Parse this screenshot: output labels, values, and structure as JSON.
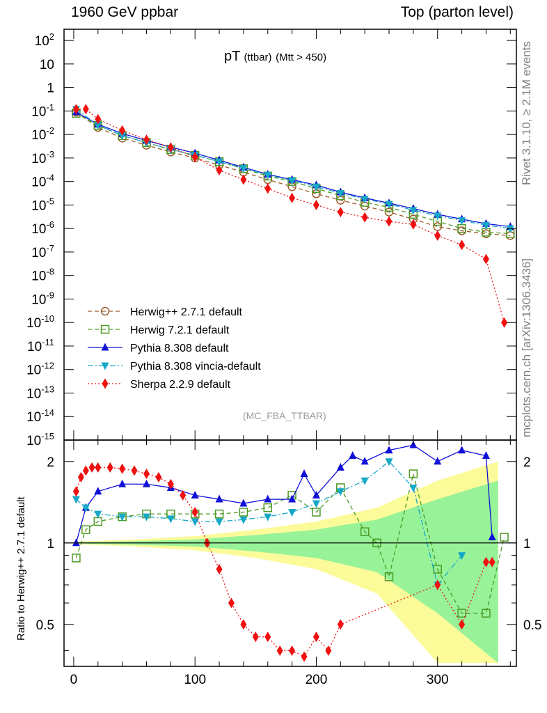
{
  "header": {
    "left": "1960 GeV ppbar",
    "right": "Top (parton level)"
  },
  "side": {
    "rivet": "Rivet 3.1.10, ≥ 2.1M events",
    "mcplots": "mcplots.cern.ch [arXiv:1306.3436]"
  },
  "chart_data": [
    {
      "type": "line",
      "title": "pT (ttbar) (Mtt > 450)",
      "title_main": "pT",
      "title_sub": "(ttbar)",
      "title_cut": "(Mtt > 450)",
      "watermark": "(MC_FBA_TTBAR)",
      "yscale": "log",
      "ylim": [
        1e-15,
        300
      ],
      "xlim": [
        -8,
        365
      ],
      "ytick_labels": [
        "10^2",
        "10",
        "1",
        "10^-1",
        "10^-2",
        "10^-3",
        "10^-4",
        "10^-5",
        "10^-6",
        "10^-7",
        "10^-8",
        "10^-9",
        "10^-10",
        "10^-11",
        "10^-12",
        "10^-13",
        "10^-14",
        "10^-15"
      ],
      "legend_position": "lower-left",
      "series": [
        {
          "name": "Herwig++ 2.7.1 default",
          "color": "#9c5b2a",
          "marker": "circle-open",
          "style": "dashed",
          "x": [
            2,
            20,
            40,
            60,
            80,
            100,
            120,
            140,
            160,
            180,
            200,
            220,
            240,
            260,
            280,
            300,
            320,
            340,
            360
          ],
          "y": [
            0.09,
            0.02,
            0.007,
            0.0035,
            0.0018,
            0.001,
            0.0005,
            0.00025,
            0.00012,
            6e-05,
            3e-05,
            1.6e-05,
            9e-06,
            5e-06,
            2.5e-06,
            1.2e-06,
            8e-07,
            6e-07,
            5e-07
          ]
        },
        {
          "name": "Herwig 7.2.1 default",
          "color": "#4d9a25",
          "marker": "square-open",
          "style": "dashed",
          "x": [
            2,
            20,
            40,
            60,
            80,
            100,
            120,
            140,
            160,
            180,
            200,
            220,
            240,
            260,
            280,
            300,
            320,
            340,
            360
          ],
          "y": [
            0.08,
            0.024,
            0.009,
            0.0045,
            0.0023,
            0.0013,
            0.0007,
            0.00035,
            0.00017,
            0.0001,
            5e-05,
            2.5e-05,
            1.3e-05,
            8e-06,
            4e-06,
            2e-06,
            1e-06,
            7e-07,
            6e-07
          ]
        },
        {
          "name": "Pythia 8.308 default",
          "color": "#1010d8",
          "marker": "triangle-up",
          "style": "solid",
          "x": [
            2,
            20,
            40,
            60,
            80,
            100,
            120,
            140,
            160,
            180,
            200,
            220,
            240,
            260,
            280,
            300,
            320,
            340,
            360
          ],
          "y": [
            0.09,
            0.027,
            0.011,
            0.0055,
            0.0029,
            0.0016,
            0.0008,
            0.0004,
            0.0002,
            0.00012,
            7e-05,
            3.5e-05,
            2e-05,
            1.2e-05,
            7e-06,
            4e-06,
            2.5e-06,
            1.6e-06,
            1.2e-06
          ]
        },
        {
          "name": "Pythia 8.308 vincia-default",
          "color": "#17a8c8",
          "marker": "triangle-down",
          "style": "dash-dot",
          "x": [
            2,
            20,
            40,
            60,
            80,
            100,
            120,
            140,
            160,
            180,
            200,
            220,
            240,
            260,
            280,
            300,
            320,
            340,
            360
          ],
          "y": [
            0.12,
            0.025,
            0.009,
            0.0045,
            0.0023,
            0.0013,
            0.0007,
            0.00037,
            0.00019,
            0.00011,
            6e-05,
            3.2e-05,
            1.8e-05,
            1.1e-05,
            6e-06,
            3.5e-06,
            2.2e-06,
            1.4e-06,
            1e-06
          ]
        },
        {
          "name": "Sherpa 2.2.9 default",
          "color": "#f01010",
          "marker": "diamond",
          "style": "dotted",
          "x": [
            2,
            10,
            20,
            40,
            60,
            80,
            100,
            120,
            140,
            160,
            180,
            200,
            220,
            240,
            260,
            280,
            300,
            320,
            340,
            355
          ],
          "y": [
            0.12,
            0.12,
            0.045,
            0.015,
            0.006,
            0.0028,
            0.0011,
            0.0003,
            0.00012,
            5e-05,
            2e-05,
            1e-05,
            5e-06,
            3e-06,
            2e-06,
            1.5e-06,
            5e-07,
            2e-07,
            5e-08,
            1e-10
          ]
        }
      ]
    },
    {
      "type": "line",
      "ylabel": "Ratio to Herwig++ 2.7.1 default",
      "yscale": "log",
      "ylim": [
        0.35,
        2.4
      ],
      "xlim": [
        -8,
        365
      ],
      "yticks": [
        0.5,
        1,
        2
      ],
      "ytick_labels": [
        "0.5",
        "1",
        "2"
      ],
      "xticks": [
        0,
        100,
        200,
        300
      ],
      "xtick_labels": [
        "0",
        "100",
        "200",
        "300"
      ],
      "reference": 1,
      "band_colors": {
        "outer": "#fbfb9a",
        "inner": "#98f298"
      },
      "band_outer": {
        "x": [
          0,
          50,
          100,
          150,
          200,
          250,
          300,
          350
        ],
        "half_width": [
          0.01,
          0.03,
          0.06,
          0.12,
          0.2,
          0.35,
          0.7,
          1.0
        ]
      },
      "band_inner": {
        "x": [
          0,
          50,
          100,
          150,
          200,
          250,
          300,
          350
        ],
        "half_width": [
          0.005,
          0.015,
          0.03,
          0.07,
          0.12,
          0.22,
          0.45,
          0.7
        ]
      },
      "series": [
        {
          "name": "Herwig 7.2.1 default",
          "color": "#4d9a25",
          "x": [
            2,
            10,
            20,
            40,
            60,
            80,
            100,
            120,
            140,
            160,
            180,
            200,
            220,
            240,
            250,
            260,
            280,
            300,
            320,
            340,
            355
          ],
          "y": [
            0.88,
            1.12,
            1.2,
            1.25,
            1.28,
            1.28,
            1.28,
            1.28,
            1.3,
            1.35,
            1.5,
            1.3,
            1.6,
            1.1,
            1.0,
            0.75,
            1.8,
            0.8,
            0.55,
            0.55,
            1.05
          ]
        },
        {
          "name": "Pythia 8.308 default",
          "color": "#1010d8",
          "x": [
            2,
            10,
            20,
            40,
            60,
            80,
            100,
            120,
            140,
            160,
            180,
            190,
            200,
            220,
            230,
            240,
            260,
            280,
            300,
            320,
            340,
            345
          ],
          "y": [
            1.0,
            1.35,
            1.55,
            1.65,
            1.65,
            1.6,
            1.5,
            1.45,
            1.4,
            1.45,
            1.45,
            1.8,
            1.5,
            1.9,
            2.1,
            2.0,
            2.2,
            2.3,
            2.0,
            2.2,
            2.1,
            1.05
          ]
        },
        {
          "name": "Pythia 8.308 vincia-default",
          "color": "#17a8c8",
          "x": [
            2,
            10,
            20,
            40,
            60,
            80,
            100,
            120,
            140,
            160,
            180,
            200,
            220,
            240,
            260,
            280,
            300,
            320
          ],
          "y": [
            1.45,
            1.35,
            1.28,
            1.25,
            1.25,
            1.23,
            1.2,
            1.2,
            1.22,
            1.25,
            1.3,
            1.4,
            1.55,
            1.7,
            2.0,
            1.6,
            0.7,
            0.9
          ]
        },
        {
          "name": "Sherpa 2.2.9 default",
          "color": "#f01010",
          "x": [
            2,
            6,
            10,
            15,
            20,
            30,
            40,
            50,
            60,
            70,
            80,
            90,
            100,
            110,
            120,
            130,
            140,
            150,
            160,
            170,
            180,
            190,
            200,
            210,
            220,
            300,
            320,
            340,
            345
          ],
          "y": [
            1.55,
            1.75,
            1.85,
            1.9,
            1.9,
            1.9,
            1.88,
            1.85,
            1.8,
            1.75,
            1.65,
            1.5,
            1.3,
            1.0,
            0.8,
            0.6,
            0.5,
            0.45,
            0.45,
            0.4,
            0.4,
            0.38,
            0.45,
            0.4,
            0.5,
            0.7,
            0.5,
            0.85,
            0.85
          ]
        }
      ]
    }
  ]
}
